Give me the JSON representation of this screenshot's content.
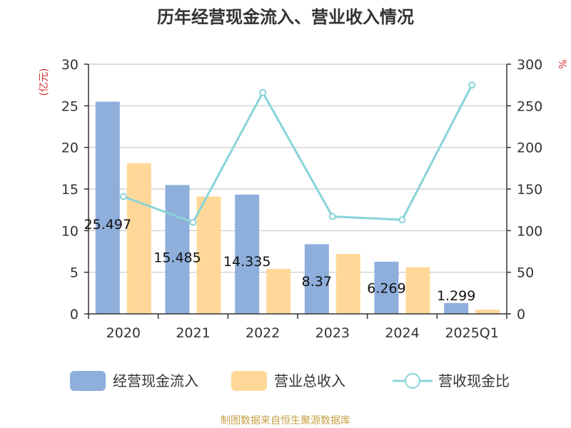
{
  "chart_data": {
    "type": "bar",
    "title": "历年经营现金流入、营业收入情况",
    "categories": [
      "2020",
      "2021",
      "2022",
      "2023",
      "2024",
      "2025Q1"
    ],
    "series": [
      {
        "name": "经营现金流入",
        "kind": "bar",
        "axis": "left",
        "color": "#8eaedb",
        "values": [
          25.497,
          15.485,
          14.335,
          8.37,
          6.269,
          1.299
        ],
        "labels": [
          "25.497",
          "15.485",
          "14.335",
          "8.37",
          "6.269",
          "1.299"
        ]
      },
      {
        "name": "营业总收入",
        "kind": "bar",
        "axis": "left",
        "color": "#ffd899",
        "values": [
          18.1,
          14.1,
          5.4,
          7.2,
          5.6,
          0.5
        ]
      },
      {
        "name": "营收现金比",
        "kind": "line",
        "axis": "right",
        "color": "#88d4d8",
        "values": [
          141,
          110,
          266,
          117,
          113,
          275
        ]
      }
    ],
    "y_left": {
      "unit": "(亿元)",
      "min": 0,
      "max": 30,
      "ticks": [
        0,
        5,
        10,
        15,
        20,
        25,
        30
      ]
    },
    "y_right": {
      "unit": "%",
      "min": 0,
      "max": 300,
      "ticks": [
        0,
        50,
        100,
        150,
        200,
        250,
        300
      ]
    },
    "grid": true,
    "legend_position": "bottom"
  },
  "source": "制图数据来自恒生聚源数据库"
}
